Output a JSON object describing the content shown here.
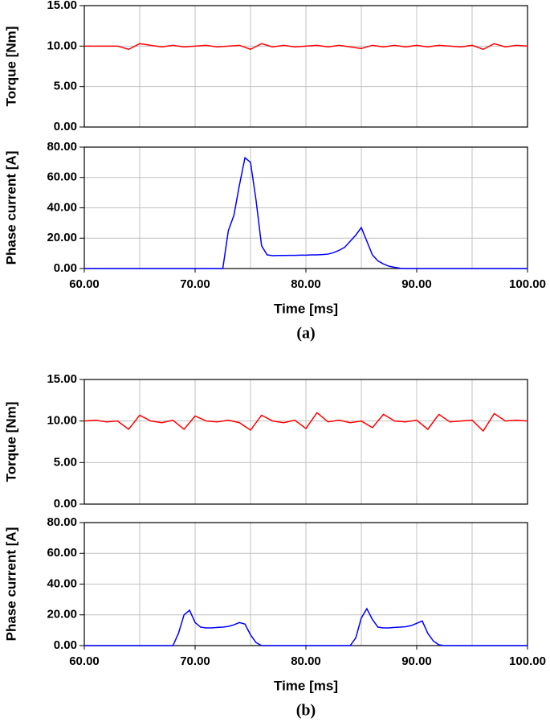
{
  "chart_data": [
    {
      "type": "line",
      "ylabel": "Torque [Nm]",
      "xlim": [
        60,
        100
      ],
      "ylim": [
        0,
        15
      ],
      "grid": true,
      "yticks": [
        {
          "value": 0,
          "label": "0.00"
        },
        {
          "value": 5,
          "label": "5.00"
        },
        {
          "value": 10,
          "label": "10.00"
        },
        {
          "value": 15,
          "label": "15.00"
        }
      ],
      "xgrid": [
        60,
        65,
        70,
        75,
        80,
        85,
        90,
        95,
        100
      ],
      "x": [
        60,
        61,
        62,
        63,
        64,
        65,
        66,
        67,
        68,
        69,
        70,
        71,
        72,
        73,
        74,
        75,
        76,
        77,
        78,
        79,
        80,
        81,
        82,
        83,
        84,
        85,
        86,
        87,
        88,
        89,
        90,
        91,
        92,
        93,
        94,
        95,
        96,
        97,
        98,
        99,
        100
      ],
      "series": [
        {
          "color": "#ff0000",
          "values": [
            10.0,
            10.0,
            10.0,
            10.0,
            9.6,
            10.3,
            10.1,
            9.9,
            10.1,
            9.9,
            10.0,
            10.1,
            9.9,
            10.0,
            10.1,
            9.6,
            10.3,
            9.9,
            10.1,
            9.9,
            10.0,
            10.1,
            9.9,
            10.1,
            9.9,
            9.7,
            10.1,
            9.9,
            10.1,
            9.9,
            10.1,
            9.9,
            10.1,
            10.0,
            9.9,
            10.1,
            9.6,
            10.3,
            9.9,
            10.1,
            10.0
          ]
        }
      ]
    },
    {
      "type": "line",
      "ylabel": "Phase current [A]",
      "xlabel": "Time [ms]",
      "caption": "(a)",
      "xlim": [
        60,
        100
      ],
      "ylim": [
        0,
        80
      ],
      "grid": true,
      "yticks": [
        {
          "value": 0,
          "label": "0.00"
        },
        {
          "value": 20,
          "label": "20.00"
        },
        {
          "value": 40,
          "label": "40.00"
        },
        {
          "value": 60,
          "label": "60.00"
        },
        {
          "value": 80,
          "label": "80.00"
        }
      ],
      "xticks": [
        {
          "value": 60,
          "label": "60.00"
        },
        {
          "value": 70,
          "label": "70.00"
        },
        {
          "value": 80,
          "label": "80.00"
        },
        {
          "value": 90,
          "label": "90.00"
        },
        {
          "value": 100,
          "label": "100.00"
        }
      ],
      "xgrid": [
        60,
        65,
        70,
        75,
        80,
        85,
        90,
        95,
        100
      ],
      "x": [
        60,
        60.5,
        61,
        61.5,
        62,
        62.5,
        63,
        63.5,
        64,
        64.5,
        65,
        65.5,
        66,
        66.5,
        67,
        67.5,
        68,
        68.5,
        69,
        69.5,
        70,
        70.5,
        71,
        71.5,
        72,
        72.5,
        73,
        73.5,
        74,
        74.5,
        75,
        75.5,
        76,
        76.5,
        77,
        77.5,
        78,
        78.5,
        79,
        79.5,
        80,
        80.5,
        81,
        81.5,
        82,
        82.5,
        83,
        83.5,
        84,
        84.5,
        85,
        85.5,
        86,
        86.5,
        87,
        87.5,
        88,
        88.5,
        89,
        89.5,
        90,
        90.5,
        91,
        91.5,
        92,
        92.5,
        93,
        93.5,
        94,
        94.5,
        95,
        95.5,
        96,
        96.5,
        97,
        97.5,
        98,
        98.5,
        99,
        99.5,
        100
      ],
      "series": [
        {
          "color": "#0000ff",
          "values": [
            0,
            0,
            0,
            0,
            0,
            0,
            0,
            0,
            0,
            0,
            0,
            0,
            0,
            0,
            0,
            0,
            0,
            0,
            0,
            0,
            0,
            0,
            0,
            0,
            0,
            0,
            25,
            35,
            55,
            73,
            70,
            45,
            15,
            9,
            8.5,
            8.6,
            8.6,
            8.7,
            8.7,
            8.8,
            8.8,
            9,
            9,
            9.2,
            9.5,
            10.5,
            12,
            14,
            18,
            22,
            27,
            18,
            9,
            5,
            3,
            1.5,
            0.8,
            0.2,
            0,
            0,
            0,
            0,
            0,
            0,
            0,
            0,
            0,
            0,
            0,
            0,
            0,
            0,
            0,
            0,
            0,
            0,
            0,
            0,
            0,
            0,
            0
          ]
        }
      ]
    },
    {
      "type": "line",
      "ylabel": "Torque [Nm]",
      "xlim": [
        60,
        100
      ],
      "ylim": [
        0,
        15
      ],
      "grid": true,
      "yticks": [
        {
          "value": 0,
          "label": "0.00"
        },
        {
          "value": 5,
          "label": "5.00"
        },
        {
          "value": 10,
          "label": "10.00"
        },
        {
          "value": 15,
          "label": "15.00"
        }
      ],
      "xgrid": [
        60,
        65,
        70,
        75,
        80,
        85,
        90,
        95,
        100
      ],
      "x": [
        60,
        61,
        62,
        63,
        64,
        65,
        66,
        67,
        68,
        69,
        70,
        71,
        72,
        73,
        74,
        75,
        76,
        77,
        78,
        79,
        80,
        81,
        82,
        83,
        84,
        85,
        86,
        87,
        88,
        89,
        90,
        91,
        92,
        93,
        94,
        95,
        96,
        97,
        98,
        99,
        100
      ],
      "series": [
        {
          "color": "#ff0000",
          "values": [
            10,
            10.1,
            9.9,
            10,
            9,
            10.7,
            10,
            9.8,
            10.1,
            9,
            10.6,
            10,
            9.9,
            10.1,
            9.8,
            8.9,
            10.7,
            10,
            9.8,
            10.1,
            9.1,
            11,
            9.9,
            10.1,
            9.8,
            10,
            9.2,
            10.8,
            10,
            9.9,
            10.1,
            9,
            10.8,
            9.9,
            10,
            10.1,
            8.8,
            10.9,
            10,
            10.1,
            10
          ]
        }
      ]
    },
    {
      "type": "line",
      "ylabel": "Phase current [A]",
      "xlabel": "Time [ms]",
      "caption": "(b)",
      "xlim": [
        60,
        100
      ],
      "ylim": [
        0,
        80
      ],
      "grid": true,
      "yticks": [
        {
          "value": 0,
          "label": "0.00"
        },
        {
          "value": 20,
          "label": "20.00"
        },
        {
          "value": 40,
          "label": "40.00"
        },
        {
          "value": 60,
          "label": "60.00"
        },
        {
          "value": 80,
          "label": "80.00"
        }
      ],
      "xticks": [
        {
          "value": 60,
          "label": "60.00"
        },
        {
          "value": 70,
          "label": "70.00"
        },
        {
          "value": 80,
          "label": "80.00"
        },
        {
          "value": 90,
          "label": "90.00"
        },
        {
          "value": 100,
          "label": "100.00"
        }
      ],
      "xgrid": [
        60,
        65,
        70,
        75,
        80,
        85,
        90,
        95,
        100
      ],
      "x": [
        60,
        60.5,
        61,
        61.5,
        62,
        62.5,
        63,
        63.5,
        64,
        64.5,
        65,
        65.5,
        66,
        66.5,
        67,
        67.5,
        68,
        68.5,
        69,
        69.5,
        70,
        70.5,
        71,
        71.5,
        72,
        72.5,
        73,
        73.5,
        74,
        74.5,
        75,
        75.5,
        76,
        76.5,
        77,
        77.5,
        78,
        78.5,
        79,
        79.5,
        80,
        80.5,
        81,
        81.5,
        82,
        82.5,
        83,
        83.5,
        84,
        84.5,
        85,
        85.5,
        86,
        86.5,
        87,
        87.5,
        88,
        88.5,
        89,
        89.5,
        90,
        90.5,
        91,
        91.5,
        92,
        92.5,
        93,
        93.5,
        94,
        94.5,
        95,
        95.5,
        96,
        96.5,
        97,
        97.5,
        98,
        98.5,
        99,
        99.5,
        100
      ],
      "series": [
        {
          "color": "#0000ff",
          "values": [
            0,
            0,
            0,
            0,
            0,
            0,
            0,
            0,
            0,
            0,
            0,
            0,
            0,
            0,
            0,
            0,
            0,
            8,
            20,
            23,
            15,
            12,
            11.5,
            11.5,
            11.8,
            12,
            12.5,
            13.5,
            15,
            14,
            7,
            2,
            0,
            0,
            0,
            0,
            0,
            0,
            0,
            0,
            0,
            0,
            0,
            0,
            0,
            0,
            0,
            0,
            0,
            5,
            18,
            24,
            17,
            12,
            11.5,
            11.5,
            11.8,
            12,
            12.3,
            13,
            14.5,
            16,
            8,
            3,
            0.5,
            0,
            0,
            0,
            0,
            0,
            0,
            0,
            0,
            0,
            0,
            0,
            0,
            0,
            0,
            0,
            0
          ]
        }
      ]
    }
  ]
}
